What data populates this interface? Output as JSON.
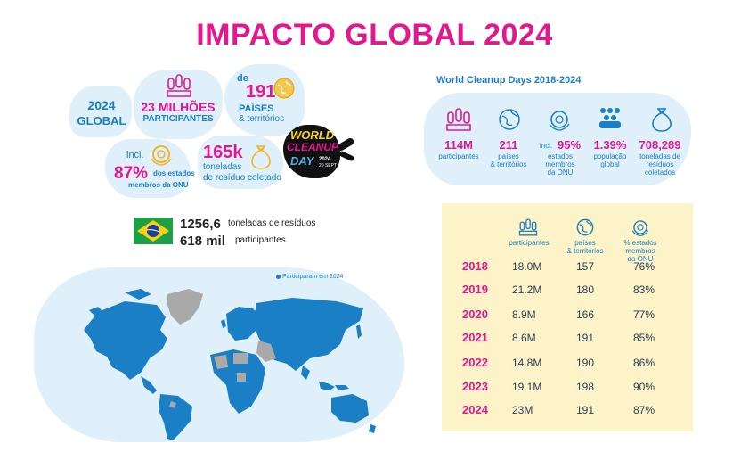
{
  "title": "IMPACTO GLOBAL 2024",
  "global": {
    "label_year": "2024",
    "label_global": "GLOBAL",
    "participants_value": "23 MILHÕES",
    "participants_label": "PARTICIPANTES",
    "countries_prefix": "de",
    "countries_value": "191",
    "countries_label_1": "PAÍSES",
    "countries_label_2": "& territórios",
    "un_prefix": "incl.",
    "un_value": "87%",
    "un_label_1": "dos estados",
    "un_label_2": "membros da ONU",
    "waste_value": "165k",
    "waste_label_1": "toneladas",
    "waste_label_2": "de resíduo coletado"
  },
  "logo": {
    "line1": "WORLD",
    "line2": "CLEANUP",
    "line3": "DAY",
    "date_line1": "2024",
    "date_line2": "20 SEPT"
  },
  "brazil": {
    "tonnes_value": "1256,6",
    "tonnes_label": "toneladas de resíduos",
    "participants_value": "618 mil",
    "participants_label": "participantes"
  },
  "map": {
    "legend": "Participaram em 2024"
  },
  "wcd": {
    "heading": "World Cleanup Days 2018-2024",
    "participants_value": "114M",
    "participants_label": "participantes",
    "countries_value": "211",
    "countries_label_1": "países",
    "countries_label_2": "& territórios",
    "un_prefix": "incl.",
    "un_value": "95%",
    "un_label_1": "estados",
    "un_label_2": "membros",
    "un_label_3": "da ONU",
    "pop_value": "1.39%",
    "pop_label_1": "população",
    "pop_label_2": "global",
    "waste_value": "708,289",
    "waste_label_1": "toneladas de",
    "waste_label_2": "resíduos",
    "waste_label_3": "coletados"
  },
  "table": {
    "col_participants": "participantes",
    "col_countries_1": "países",
    "col_countries_2": "& territórios",
    "col_un_1": "% estados",
    "col_un_2": "membros",
    "col_un_3": "da ONU",
    "rows": [
      {
        "year": "2018",
        "participants": "18.0M",
        "countries": "157",
        "un": "76%"
      },
      {
        "year": "2019",
        "participants": "21.2M",
        "countries": "180",
        "un": "83%"
      },
      {
        "year": "2020",
        "participants": "8.9M",
        "countries": "166",
        "un": "77%"
      },
      {
        "year": "2021",
        "participants": "8.6M",
        "countries": "191",
        "un": "85%"
      },
      {
        "year": "2022",
        "participants": "14.8M",
        "countries": "190",
        "un": "86%"
      },
      {
        "year": "2023",
        "participants": "19.1M",
        "countries": "198",
        "un": "90%"
      },
      {
        "year": "2024",
        "participants": "23M",
        "countries": "191",
        "un": "87%"
      }
    ]
  },
  "colors": {
    "pink": "#e5178e",
    "blue": "#1a7fc4",
    "light_blue": "#dff0fb",
    "table_bg": "#fdf3c8",
    "map_land": "#1a7fc4",
    "map_gray": "#a9a9a9"
  }
}
